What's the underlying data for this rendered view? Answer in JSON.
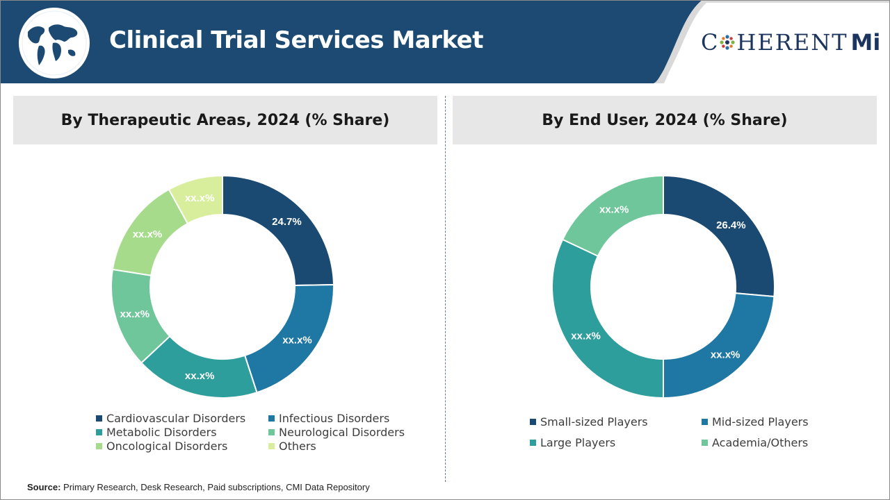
{
  "header": {
    "title": "Clinical Trial Services Market",
    "logo_first": "C",
    "logo_rest": "HERENT",
    "logo_suffix": "Mi"
  },
  "colors": {
    "header_blue": "#1c4a72",
    "dark_navy": "#1a4a72",
    "blue": "#1f77a3",
    "teal": "#2e9e9c",
    "green": "#6fc69a",
    "light_green": "#a7db8c",
    "pale_green": "#d8ee9c"
  },
  "source": {
    "label": "Source:",
    "text": " Primary Research, Desk Research, Paid subscriptions, CMI Data Repository"
  },
  "chart_data": [
    {
      "type": "pie",
      "donut": true,
      "title": "By Therapeutic Areas, 2024 (% Share)",
      "legend_position": "bottom",
      "slices": [
        {
          "name": "Cardiovascular Disorders",
          "value": 24.7,
          "label": "24.7%",
          "color": "#1a4a72"
        },
        {
          "name": "Infectious Disorders",
          "value": 20.3,
          "label": "xx.x%",
          "color": "#1f77a3"
        },
        {
          "name": "Metabolic Disorders",
          "value": 18.0,
          "label": "xx.x%",
          "color": "#2e9e9c"
        },
        {
          "name": "Neurological Disorders",
          "value": 14.5,
          "label": "xx.x%",
          "color": "#6fc69a"
        },
        {
          "name": "Oncological Disorders",
          "value": 14.5,
          "label": "xx.x%",
          "color": "#a7db8c"
        },
        {
          "name": "Others",
          "value": 8.0,
          "label": "xx.x%",
          "color": "#d8ee9c"
        }
      ]
    },
    {
      "type": "pie",
      "donut": true,
      "title": "By End User, 2024 (% Share)",
      "legend_position": "bottom",
      "slices": [
        {
          "name": "Small-sized Players",
          "value": 26.4,
          "label": "26.4%",
          "color": "#1a4a72"
        },
        {
          "name": "Mid-sized Players",
          "value": 23.6,
          "label": "xx.x%",
          "color": "#1f77a3"
        },
        {
          "name": "Large Players",
          "value": 32.0,
          "label": "xx.x%",
          "color": "#2e9e9c"
        },
        {
          "name": "Academia/Others",
          "value": 18.0,
          "label": "xx.x%",
          "color": "#6fc69a"
        }
      ]
    }
  ]
}
